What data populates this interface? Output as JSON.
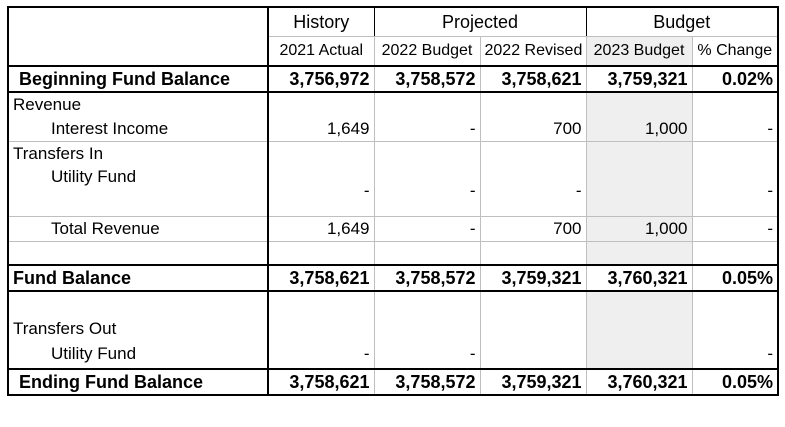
{
  "header": {
    "groups": [
      "History",
      "Projected",
      "Budget"
    ],
    "columns": [
      "2021 Actual",
      "2022 Budget",
      "2022 Revised",
      "2023 Budget",
      "% Change"
    ]
  },
  "rows": {
    "beginning": {
      "label": "Beginning Fund Balance",
      "values": [
        "3,756,972",
        "3,758,572",
        "3,758,621",
        "3,759,321",
        "0.02%"
      ]
    },
    "revenue": {
      "label": "Revenue"
    },
    "interest": {
      "label": "Interest Income",
      "values": [
        "1,649",
        "-",
        "700",
        "1,000",
        "-"
      ]
    },
    "transfers_in": {
      "label": "Transfers In"
    },
    "utility_in": {
      "label": "Utility Fund",
      "values": [
        "-",
        "-",
        "-",
        "",
        "-"
      ]
    },
    "total_revenue": {
      "label": "Total Revenue",
      "values": [
        "1,649",
        "-",
        "700",
        "1,000",
        "-"
      ]
    },
    "fund_balance": {
      "label": "Fund Balance",
      "values": [
        "3,758,621",
        "3,758,572",
        "3,759,321",
        "3,760,321",
        "0.05%"
      ]
    },
    "transfers_out": {
      "label": "Transfers Out"
    },
    "utility_out": {
      "label": "Utility Fund",
      "values": [
        "-",
        "-",
        "",
        "",
        "-"
      ]
    },
    "ending": {
      "label": "Ending Fund Balance",
      "values": [
        "3,758,621",
        "3,758,572",
        "3,759,321",
        "3,760,321",
        "0.05%"
      ]
    }
  }
}
